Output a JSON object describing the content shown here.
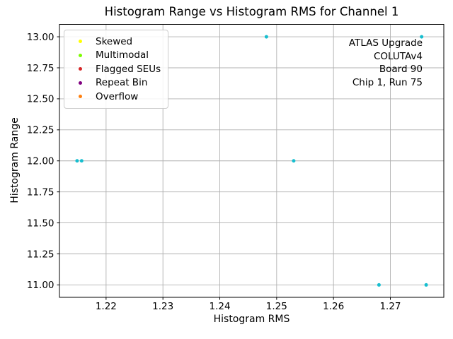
{
  "chart_data": {
    "type": "scatter",
    "title": "Histogram Range vs Histogram RMS for Channel 1",
    "xlabel": "Histogram RMS",
    "ylabel": "Histogram Range",
    "xlim": [
      1.2118,
      1.2794
    ],
    "ylim": [
      10.9,
      13.1
    ],
    "xticks": {
      "values": [
        1.22,
        1.23,
        1.24,
        1.25,
        1.26,
        1.27
      ],
      "labels": [
        "1.22",
        "1.23",
        "1.24",
        "1.25",
        "1.26",
        "1.27"
      ]
    },
    "yticks": {
      "values": [
        11.0,
        11.25,
        11.5,
        11.75,
        12.0,
        12.25,
        12.5,
        12.75,
        13.0
      ],
      "labels": [
        "11.00",
        "11.25",
        "11.50",
        "11.75",
        "12.00",
        "12.25",
        "12.50",
        "12.75",
        "13.00"
      ]
    },
    "grid": {
      "show": true,
      "color": "#b0b0b0"
    },
    "spine_color": "#000000",
    "series": [
      {
        "name": "channel-1-points",
        "color": "#17becf",
        "marker_size": 5,
        "points": [
          [
            1.2149,
            12.0
          ],
          [
            1.2157,
            12.0
          ],
          [
            1.2482,
            13.0
          ],
          [
            1.253,
            12.0
          ],
          [
            1.268,
            11.0
          ],
          [
            1.2755,
            13.0
          ],
          [
            1.2763,
            11.0
          ]
        ]
      }
    ],
    "legend": {
      "position": "upper left",
      "entries": [
        {
          "label": "Skewed",
          "color": "#ffff00",
          "icon": "yellow-dot-icon"
        },
        {
          "label": "Multimodal",
          "color": "#7cfc00",
          "icon": "green-dot-icon"
        },
        {
          "label": "Flagged SEUs",
          "color": "#d62728",
          "icon": "red-dot-icon"
        },
        {
          "label": "Repeat Bin",
          "color": "#800080",
          "icon": "purple-dot-icon"
        },
        {
          "label": "Overflow",
          "color": "#ff7f0e",
          "icon": "orange-dot-icon"
        }
      ]
    },
    "annotation": {
      "align": "right",
      "lines": [
        "ATLAS Upgrade",
        "COLUTAv4",
        "Board 90",
        "Chip 1, Run 75"
      ]
    }
  }
}
